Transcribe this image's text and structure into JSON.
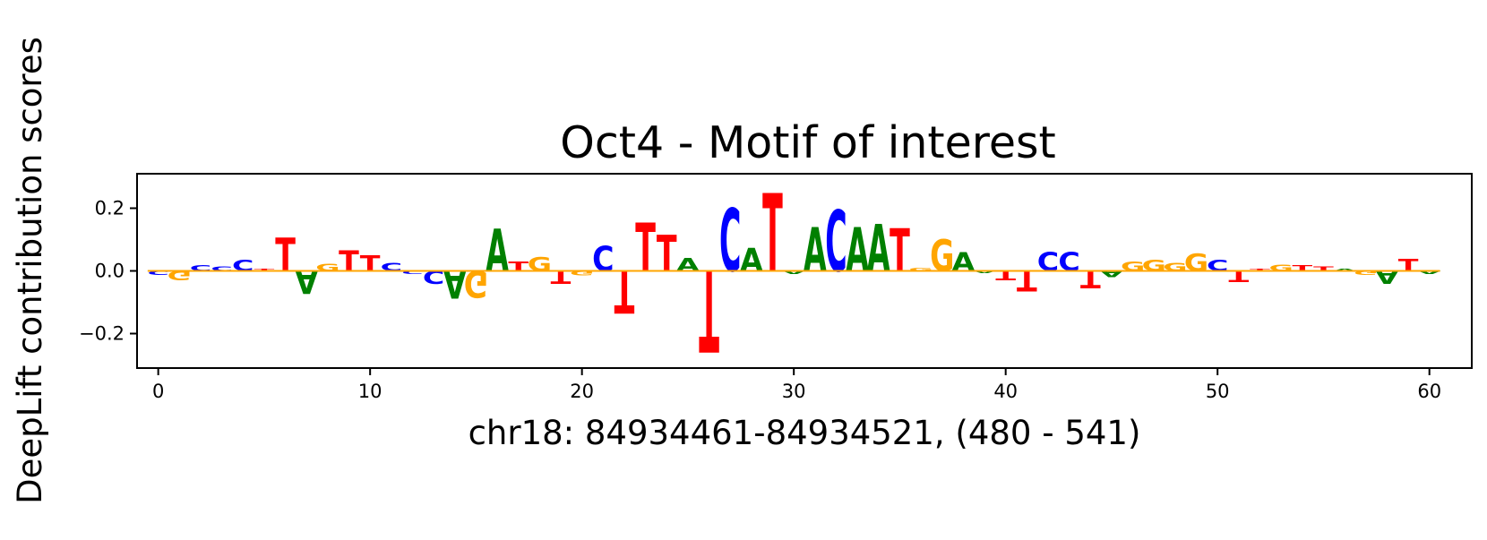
{
  "chart_data": {
    "type": "sequence-logo",
    "title": "Oct4 - Motif of interest",
    "xlabel": "chr18: 84934461-84934521, (480 - 541)",
    "ylabel": "DeepLift contribution scores",
    "xlim": [
      -1,
      62
    ],
    "ylim": [
      -0.31,
      0.31
    ],
    "xticks": [
      0,
      10,
      20,
      30,
      40,
      50,
      60
    ],
    "xtick_labels": [
      "0",
      "10",
      "20",
      "30",
      "40",
      "50",
      "60"
    ],
    "yticks": [
      -0.2,
      0.0,
      0.2
    ],
    "ytick_labels": [
      "−0.2",
      "0.0",
      "0.2"
    ],
    "colors": {
      "A": "#008000",
      "C": "#0000ff",
      "G": "#ffa500",
      "T": "#ff0000"
    },
    "positions": [
      {
        "x": 0,
        "base": "C",
        "value": -0.012
      },
      {
        "x": 1,
        "base": "G",
        "value": -0.03
      },
      {
        "x": 2,
        "base": "C",
        "value": 0.018
      },
      {
        "x": 3,
        "base": "C",
        "value": 0.015
      },
      {
        "x": 4,
        "base": "C",
        "value": 0.035
      },
      {
        "x": 5,
        "base": "T",
        "value": 0.008
      },
      {
        "x": 6,
        "base": "T",
        "value": 0.105
      },
      {
        "x": 7,
        "base": "A",
        "value": -0.075
      },
      {
        "x": 8,
        "base": "G",
        "value": 0.022
      },
      {
        "x": 9,
        "base": "T",
        "value": 0.065
      },
      {
        "x": 10,
        "base": "T",
        "value": 0.05
      },
      {
        "x": 11,
        "base": "C",
        "value": 0.025
      },
      {
        "x": 12,
        "base": "C",
        "value": -0.01
      },
      {
        "x": 13,
        "base": "C",
        "value": -0.04
      },
      {
        "x": 14,
        "base": "A",
        "value": -0.09
      },
      {
        "x": 15,
        "base": "G",
        "value": -0.085
      },
      {
        "x": 16,
        "base": "A",
        "value": 0.135
      },
      {
        "x": 17,
        "base": "T",
        "value": 0.03
      },
      {
        "x": 18,
        "base": "G",
        "value": 0.045
      },
      {
        "x": 19,
        "base": "T",
        "value": -0.04
      },
      {
        "x": 20,
        "base": "G",
        "value": -0.015
      },
      {
        "x": 21,
        "base": "C",
        "value": 0.08
      },
      {
        "x": 22,
        "base": "T",
        "value": -0.135
      },
      {
        "x": 23,
        "base": "T",
        "value": 0.155
      },
      {
        "x": 24,
        "base": "T",
        "value": 0.115
      },
      {
        "x": 25,
        "base": "A",
        "value": 0.04
      },
      {
        "x": 26,
        "base": "T",
        "value": -0.26
      },
      {
        "x": 27,
        "base": "C",
        "value": 0.2
      },
      {
        "x": 28,
        "base": "A",
        "value": 0.075
      },
      {
        "x": 29,
        "base": "T",
        "value": 0.25
      },
      {
        "x": 30,
        "base": "A",
        "value": -0.01
      },
      {
        "x": 31,
        "base": "A",
        "value": 0.14
      },
      {
        "x": 32,
        "base": "C",
        "value": 0.195
      },
      {
        "x": 33,
        "base": "A",
        "value": 0.14
      },
      {
        "x": 34,
        "base": "A",
        "value": 0.15
      },
      {
        "x": 35,
        "base": "T",
        "value": 0.135
      },
      {
        "x": 36,
        "base": "G",
        "value": 0.01
      },
      {
        "x": 37,
        "base": "G",
        "value": 0.1
      },
      {
        "x": 38,
        "base": "A",
        "value": 0.06
      },
      {
        "x": 39,
        "base": "A",
        "value": -0.008
      },
      {
        "x": 40,
        "base": "T",
        "value": -0.03
      },
      {
        "x": 41,
        "base": "T",
        "value": -0.065
      },
      {
        "x": 42,
        "base": "C",
        "value": 0.06
      },
      {
        "x": 43,
        "base": "C",
        "value": 0.06
      },
      {
        "x": 44,
        "base": "T",
        "value": -0.055
      },
      {
        "x": 45,
        "base": "A",
        "value": -0.02
      },
      {
        "x": 46,
        "base": "G",
        "value": 0.03
      },
      {
        "x": 47,
        "base": "G",
        "value": 0.035
      },
      {
        "x": 48,
        "base": "G",
        "value": 0.025
      },
      {
        "x": 49,
        "base": "G",
        "value": 0.055
      },
      {
        "x": 50,
        "base": "C",
        "value": 0.035
      },
      {
        "x": 51,
        "base": "T",
        "value": -0.035
      },
      {
        "x": 52,
        "base": "T",
        "value": 0.008
      },
      {
        "x": 53,
        "base": "G",
        "value": 0.02
      },
      {
        "x": 54,
        "base": "T",
        "value": 0.018
      },
      {
        "x": 55,
        "base": "T",
        "value": 0.015
      },
      {
        "x": 56,
        "base": "A",
        "value": 0.008
      },
      {
        "x": 57,
        "base": "G",
        "value": -0.012
      },
      {
        "x": 58,
        "base": "A",
        "value": -0.04
      },
      {
        "x": 59,
        "base": "T",
        "value": 0.038
      },
      {
        "x": 60,
        "base": "A",
        "value": -0.01
      }
    ]
  }
}
